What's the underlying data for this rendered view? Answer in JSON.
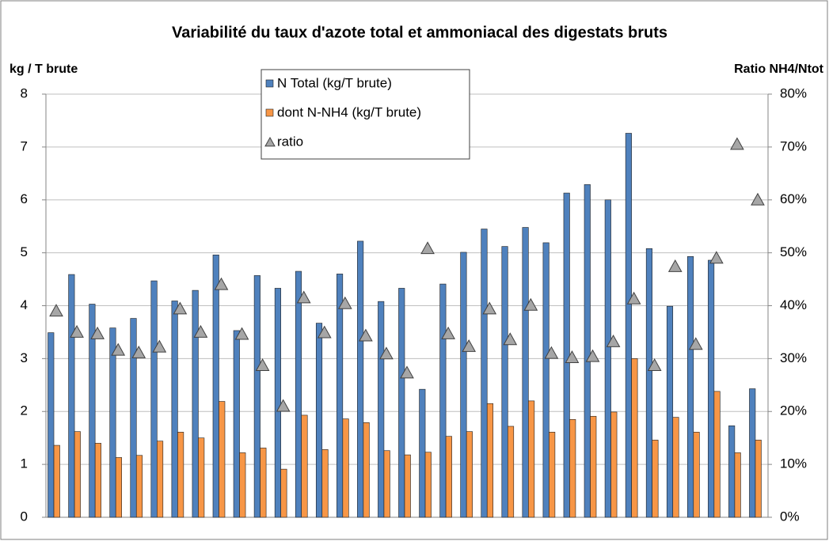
{
  "chart_data": {
    "type": "bar",
    "title": "Variabilité du taux d'azote total et ammoniacal des digestats bruts",
    "y_label": "kg / T brute",
    "y2_label": "Ratio NH4/Ntot",
    "categories": [
      null,
      null,
      null,
      null,
      null,
      null,
      null,
      null,
      null,
      null,
      null,
      null,
      null,
      null,
      null,
      null,
      null,
      null,
      null,
      null,
      null,
      null,
      null,
      null,
      null,
      null,
      null,
      null,
      null,
      null,
      null,
      null,
      null,
      null,
      null
    ],
    "ylim": [
      0,
      8
    ],
    "yticks": [
      0,
      1,
      2,
      3,
      4,
      5,
      6,
      7,
      8
    ],
    "y2lim": [
      0,
      80
    ],
    "y2ticks": [
      {
        "value": 0,
        "label": "0%"
      },
      {
        "value": 10,
        "label": "10%"
      },
      {
        "value": 20,
        "label": "20%"
      },
      {
        "value": 30,
        "label": "30%"
      },
      {
        "value": 40,
        "label": "40%"
      },
      {
        "value": 50,
        "label": "50%"
      },
      {
        "value": 60,
        "label": "60%"
      },
      {
        "value": 70,
        "label": "70%"
      },
      {
        "value": 80,
        "label": "80%"
      }
    ],
    "grid": true,
    "legend": "top",
    "series": [
      {
        "name": "N Total (kg/T brute)",
        "color": "#4f81bd",
        "values": [
          3.49,
          4.59,
          4.03,
          3.58,
          3.76,
          4.47,
          4.09,
          4.29,
          4.96,
          3.53,
          4.57,
          4.33,
          4.65,
          3.67,
          4.6,
          5.22,
          4.08,
          4.33,
          2.42,
          4.41,
          5.01,
          5.45,
          5.12,
          5.48,
          5.19,
          6.13,
          6.29,
          6.0,
          7.26,
          5.08,
          3.99,
          4.93,
          4.86,
          1.73,
          2.43
        ]
      },
      {
        "name": "dont N-NH4 (kg/T brute)",
        "color": "#f79646",
        "values": [
          1.36,
          1.62,
          1.4,
          1.13,
          1.17,
          1.44,
          1.61,
          1.5,
          2.19,
          1.22,
          1.31,
          0.91,
          1.93,
          1.28,
          1.86,
          1.79,
          1.26,
          1.18,
          1.23,
          1.53,
          1.62,
          2.15,
          1.72,
          2.2,
          1.61,
          1.85,
          1.91,
          1.99,
          3.0,
          1.46,
          1.89,
          1.61,
          2.38,
          1.22,
          1.46
        ]
      },
      {
        "name": "ratio",
        "color": "#a6a6a6",
        "axis": "y2",
        "marker": "triangle",
        "values": [
          39,
          35,
          34.7,
          31.6,
          31.1,
          32.2,
          39.4,
          35,
          44,
          34.6,
          28.7,
          21,
          41.5,
          34.9,
          40.4,
          34.3,
          30.9,
          27.3,
          50.8,
          34.7,
          32.3,
          39.4,
          33.6,
          40.1,
          31,
          30.2,
          30.4,
          33.2,
          41.3,
          28.7,
          47.4,
          32.7,
          49,
          70.5,
          60
        ]
      }
    ]
  }
}
